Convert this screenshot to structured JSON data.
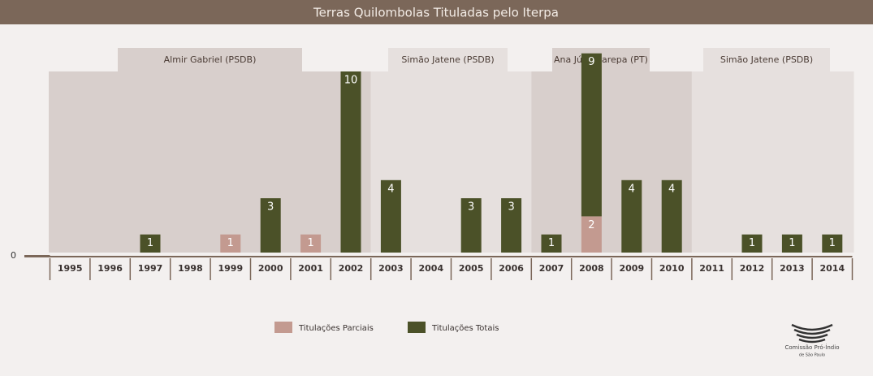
{
  "chart_data": {
    "type": "bar",
    "stacked": true,
    "title": "Terras Quilombolas Tituladas pelo Iterpa",
    "categories": [
      "1995",
      "1996",
      "1997",
      "1998",
      "1999",
      "2000",
      "2001",
      "2002",
      "2003",
      "2004",
      "2005",
      "2006",
      "2007",
      "2008",
      "2009",
      "2010",
      "2011",
      "2012",
      "2013",
      "2014"
    ],
    "series": [
      {
        "name": "Titulações Parciais",
        "color": "#c39a90",
        "values": [
          null,
          null,
          null,
          null,
          1,
          null,
          1,
          null,
          null,
          null,
          null,
          null,
          null,
          2,
          null,
          null,
          null,
          null,
          null,
          null
        ]
      },
      {
        "name": "Titulações Totais",
        "color": "#4b5128",
        "values": [
          null,
          null,
          1,
          null,
          null,
          3,
          null,
          10,
          4,
          null,
          3,
          3,
          1,
          9,
          4,
          4,
          null,
          1,
          1,
          1
        ]
      }
    ],
    "periods": [
      "Almir  Gabriel (PSDB)",
      "Simão Jatene (PSDB)",
      "Ana Júlia Carepa (PT)",
      "Simão Jatene (PSDB)"
    ],
    "ylim": [
      0,
      12
    ],
    "yticks": [
      0
    ],
    "logo_text": [
      "Comissão Pró-Índio",
      "de São Paulo"
    ]
  }
}
